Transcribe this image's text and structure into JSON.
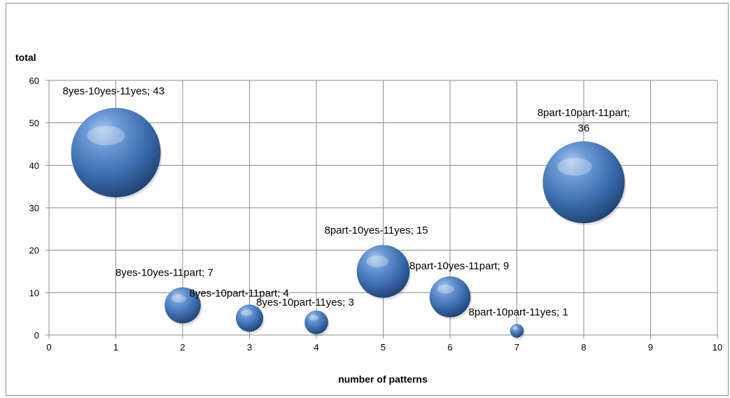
{
  "chart_data": {
    "type": "scatter",
    "bubble": true,
    "title": "",
    "xlabel": "number of patterns",
    "ylabel": "total",
    "xlim": [
      0,
      10
    ],
    "ylim": [
      0,
      60
    ],
    "xticks": [
      "0",
      "1",
      "2",
      "3",
      "4",
      "5",
      "6",
      "7",
      "8",
      "9",
      "10"
    ],
    "yticks": [
      "0",
      "10",
      "20",
      "30",
      "40",
      "50",
      "60"
    ],
    "grid": true,
    "legend": "none",
    "bubble_color": "#4a7ebb",
    "points": [
      {
        "x": 1,
        "y": 43,
        "size": 43,
        "label": "8yes-10yes-11yes; 43"
      },
      {
        "x": 2,
        "y": 7,
        "size": 7,
        "label": "8yes-10yes-11part; 7"
      },
      {
        "x": 3,
        "y": 4,
        "size": 4,
        "label": "8yes-10part-11part; 4"
      },
      {
        "x": 4,
        "y": 3,
        "size": 3,
        "label": "8yes-10part-11yes; 3"
      },
      {
        "x": 5,
        "y": 15,
        "size": 15,
        "label": "8part-10yes-11yes; 15"
      },
      {
        "x": 6,
        "y": 9,
        "size": 9,
        "label": "8part-10yes-11part; 9"
      },
      {
        "x": 7,
        "y": 1,
        "size": 1,
        "label": "8part-10part-11yes; 1"
      },
      {
        "x": 8,
        "y": 36,
        "size": 36,
        "label_lines": [
          "8part-10part-11part;",
          "36"
        ]
      }
    ]
  }
}
